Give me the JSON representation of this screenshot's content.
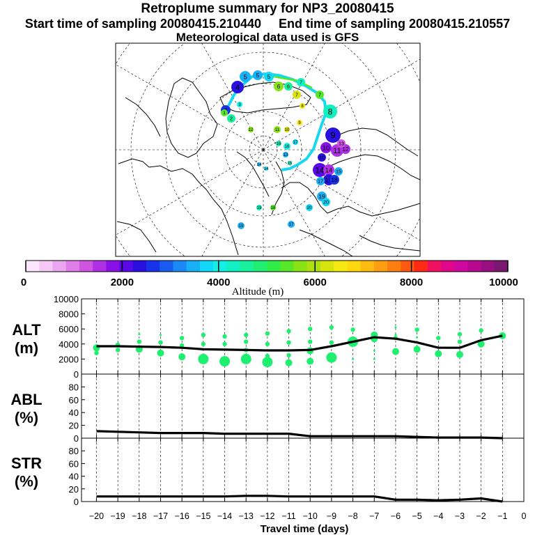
{
  "header": {
    "title": "Retroplume summary for NP3_20080415",
    "start_label": "Start time of sampling 20080415.210440",
    "end_label": "End time of sampling 20080415.210557",
    "met_label": "Meteorological data used is GFS"
  },
  "colorbar": {
    "xlabel": "Altitude (m)",
    "ticks": [
      "0",
      "2000",
      "4000",
      "6000",
      "8000",
      "10000"
    ],
    "colors": [
      "#fbe6fb",
      "#f5c8f5",
      "#eba6f0",
      "#df7ee8",
      "#cf55e0",
      "#b030e6",
      "#8a10e8",
      "#5a08e8",
      "#2a10e0",
      "#1832ea",
      "#1a5cf0",
      "#1a88f5",
      "#18b0f8",
      "#10d8f8",
      "#10f0e6",
      "#10f0c0",
      "#18f09a",
      "#20ee70",
      "#30ec48",
      "#58e628",
      "#88e214",
      "#b0e010",
      "#d8e410",
      "#f4ea10",
      "#ffd810",
      "#ffbc10",
      "#ff9e10",
      "#ff7e10",
      "#ff5a10",
      "#ff2a14",
      "#f01060",
      "#e00888",
      "#d008a0",
      "#b80890",
      "#981080",
      "#781870"
    ]
  },
  "map": {
    "labels": [
      "1",
      "2",
      "3",
      "4",
      "5",
      "6",
      "7",
      "8",
      "9",
      "10",
      "11",
      "12",
      "13",
      "14",
      "15",
      "16",
      "17",
      "18",
      "19",
      "20"
    ]
  },
  "chart_data": [
    {
      "type": "line",
      "panel": "ALT",
      "ylabel": "ALT\n(m)",
      "ylim": [
        0,
        10000
      ],
      "yticks": [
        0,
        2000,
        4000,
        6000,
        8000,
        10000
      ],
      "x": [
        -20,
        -19,
        -18,
        -17,
        -16,
        -15,
        -14,
        -13,
        -12,
        -11,
        -10,
        -9,
        -8,
        -7,
        -6,
        -5,
        -4,
        -3,
        -2,
        -1
      ],
      "series": [
        {
          "name": "mean altitude",
          "values": [
            3700,
            3700,
            3650,
            3600,
            3500,
            3300,
            3250,
            3200,
            3150,
            3150,
            3200,
            3700,
            4300,
            4900,
            4700,
            4200,
            3500,
            3500,
            4500,
            5100
          ]
        },
        {
          "name": "plume clusters (altitude, size)",
          "points": [
            [
              -20,
              3500,
              2
            ],
            [
              -20,
              2800,
              1
            ],
            [
              -19,
              3900,
              1
            ],
            [
              -19,
              3200,
              1
            ],
            [
              -18,
              5300,
              0
            ],
            [
              -18,
              4300,
              1
            ],
            [
              -18,
              3300,
              2
            ],
            [
              -17,
              5200,
              0
            ],
            [
              -17,
              4200,
              1
            ],
            [
              -17,
              2800,
              2
            ],
            [
              -16,
              4800,
              1
            ],
            [
              -16,
              3800,
              1
            ],
            [
              -16,
              2300,
              2
            ],
            [
              -15,
              5200,
              1
            ],
            [
              -15,
              4000,
              1
            ],
            [
              -15,
              2000,
              3
            ],
            [
              -14,
              5000,
              1
            ],
            [
              -14,
              4000,
              1
            ],
            [
              -14,
              1700,
              3
            ],
            [
              -13,
              5200,
              1
            ],
            [
              -13,
              4300,
              1
            ],
            [
              -13,
              3200,
              1
            ],
            [
              -13,
              2000,
              3
            ],
            [
              -12,
              5400,
              1
            ],
            [
              -12,
              4000,
              1
            ],
            [
              -12,
              1600,
              3
            ],
            [
              -12,
              2400,
              1
            ],
            [
              -11,
              5700,
              1
            ],
            [
              -11,
              4200,
              1
            ],
            [
              -11,
              1500,
              2
            ],
            [
              -11,
              2500,
              1
            ],
            [
              -10,
              6000,
              1
            ],
            [
              -10,
              4300,
              1
            ],
            [
              -10,
              3100,
              2
            ],
            [
              -10,
              1700,
              2
            ],
            [
              -9,
              6200,
              1
            ],
            [
              -9,
              4200,
              1
            ],
            [
              -9,
              2200,
              3
            ],
            [
              -8,
              5900,
              1
            ],
            [
              -8,
              4300,
              3
            ],
            [
              -8,
              2000,
              0
            ],
            [
              -7,
              5200,
              2
            ],
            [
              -7,
              4700,
              2
            ],
            [
              -7,
              3100,
              0
            ],
            [
              -7,
              2000,
              0
            ],
            [
              -6,
              6200,
              0
            ],
            [
              -6,
              5200,
              0
            ],
            [
              -6,
              4800,
              1
            ],
            [
              -6,
              3000,
              2
            ],
            [
              -5,
              5900,
              1
            ],
            [
              -5,
              4900,
              0
            ],
            [
              -5,
              3300,
              2
            ],
            [
              -4,
              4800,
              1
            ],
            [
              -4,
              2700,
              2
            ],
            [
              -3,
              5300,
              1
            ],
            [
              -3,
              4300,
              1
            ],
            [
              -3,
              2600,
              2
            ],
            [
              -2,
              5800,
              1
            ],
            [
              -2,
              4000,
              2
            ],
            [
              -1,
              5100,
              2
            ]
          ]
        }
      ]
    },
    {
      "type": "line",
      "panel": "ABL",
      "ylabel": "ABL\n(%)",
      "ylim": [
        0,
        100
      ],
      "yticks": [
        0,
        20,
        40,
        60,
        80
      ],
      "x": [
        -20,
        -19,
        -18,
        -17,
        -16,
        -15,
        -14,
        -13,
        -12,
        -11,
        -10,
        -9,
        -8,
        -7,
        -6,
        -5,
        -4,
        -3,
        -2,
        -1
      ],
      "values": [
        11,
        10,
        9,
        8,
        8,
        8,
        7,
        7,
        7,
        7,
        3,
        3,
        3,
        3,
        3,
        2,
        1,
        1,
        1,
        0
      ]
    },
    {
      "type": "line",
      "panel": "STR",
      "ylabel": "STR\n(%)",
      "ylim": [
        0,
        100
      ],
      "yticks": [
        0,
        20,
        40,
        60,
        80
      ],
      "xlabel": "Travel time (days)",
      "xticks": [
        -20,
        -19,
        -18,
        -17,
        -16,
        -15,
        -14,
        -13,
        -12,
        -11,
        -10,
        -9,
        -8,
        -7,
        -6,
        -5,
        -4,
        -3,
        -2,
        -1,
        0
      ],
      "x": [
        -20,
        -19,
        -18,
        -17,
        -16,
        -15,
        -14,
        -13,
        -12,
        -11,
        -10,
        -9,
        -8,
        -7,
        -6,
        -5,
        -4,
        -3,
        -2,
        -1
      ],
      "values": [
        8,
        8,
        8,
        8,
        8,
        8,
        8,
        9,
        9,
        8,
        8,
        8,
        8,
        8,
        3,
        3,
        2,
        3,
        5,
        0
      ]
    }
  ]
}
